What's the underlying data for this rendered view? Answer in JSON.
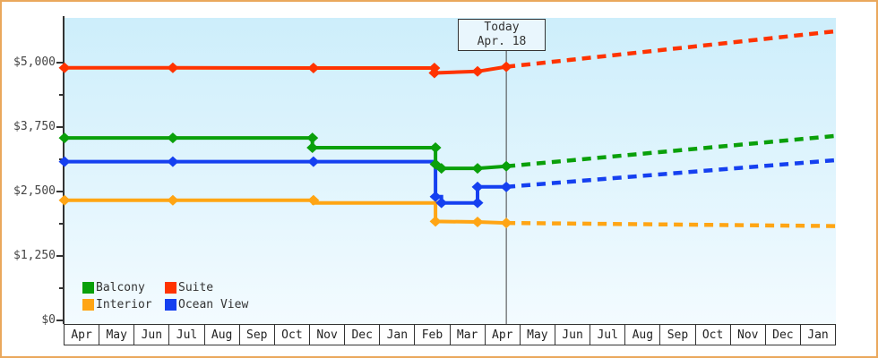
{
  "page": {
    "frame_color": "#eaa85c",
    "plot_bg_top": "#cdeefb",
    "plot_bg_bottom": "#f3fbff",
    "axis_color": "#333333"
  },
  "chart_data": {
    "type": "line",
    "description": "Cabin price history (solid) and forecast (dashed) by cabin category",
    "x_unit": "months",
    "x_range": [
      0,
      22
    ],
    "x_tick_labels": [
      "Apr",
      "May",
      "Jun",
      "Jul",
      "Aug",
      "Sep",
      "Oct",
      "Nov",
      "Dec",
      "Jan",
      "Feb",
      "Mar",
      "Apr",
      "May",
      "Jun",
      "Jul",
      "Aug",
      "Sep",
      "Oct",
      "Nov",
      "Dec",
      "Jan"
    ],
    "y_range": [
      0,
      5870
    ],
    "y_ticks": [
      0,
      1250,
      2500,
      3750,
      5000
    ],
    "y_tick_labels": [
      "$0",
      "$1,250",
      "$2,500",
      "$3,750",
      "$5,000"
    ],
    "y_minor_ticks": [
      625,
      1875,
      3125,
      4375
    ],
    "grid": false,
    "legend_position": "bottom-left",
    "today": {
      "x": 12.6,
      "label": "Today",
      "date": "Apr. 18"
    },
    "series": [
      {
        "name": "Interior",
        "color": "#ffa514",
        "history": [
          [
            0,
            2330
          ],
          [
            7.1,
            2330
          ],
          [
            7.1,
            2280
          ],
          [
            10.58,
            2280
          ],
          [
            10.58,
            1920
          ],
          [
            11.78,
            1910
          ],
          [
            12.6,
            1890
          ]
        ],
        "markers": [
          [
            0,
            2330
          ],
          [
            3.09,
            2330
          ],
          [
            7.1,
            2330
          ],
          [
            10.58,
            1920
          ],
          [
            11.78,
            1910
          ],
          [
            12.6,
            1890
          ]
        ],
        "forecast": [
          [
            12.6,
            1890
          ],
          [
            22,
            1830
          ]
        ]
      },
      {
        "name": "Ocean View",
        "color": "#1540f0",
        "history": [
          [
            0,
            3080
          ],
          [
            10.58,
            3080
          ],
          [
            10.58,
            2400
          ],
          [
            10.75,
            2400
          ],
          [
            10.75,
            2280
          ],
          [
            11.78,
            2280
          ],
          [
            11.78,
            2590
          ],
          [
            12.6,
            2590
          ]
        ],
        "markers": [
          [
            0,
            3080
          ],
          [
            3.09,
            3080
          ],
          [
            7.1,
            3080
          ],
          [
            10.58,
            2400
          ],
          [
            10.75,
            2280
          ],
          [
            11.78,
            2280
          ],
          [
            11.78,
            2590
          ],
          [
            12.6,
            2590
          ]
        ],
        "forecast": [
          [
            12.6,
            2590
          ],
          [
            22,
            3110
          ]
        ]
      },
      {
        "name": "Balcony",
        "color": "#0aa00a",
        "history": [
          [
            0,
            3540
          ],
          [
            7.07,
            3540
          ],
          [
            7.07,
            3350
          ],
          [
            10.58,
            3350
          ],
          [
            10.58,
            3030
          ],
          [
            10.75,
            2950
          ],
          [
            11.78,
            2950
          ],
          [
            12.6,
            2990
          ]
        ],
        "markers": [
          [
            0,
            3540
          ],
          [
            3.09,
            3540
          ],
          [
            7.07,
            3540
          ],
          [
            7.07,
            3350
          ],
          [
            10.58,
            3350
          ],
          [
            10.58,
            3030
          ],
          [
            10.75,
            2950
          ],
          [
            11.78,
            2950
          ],
          [
            12.6,
            2990
          ]
        ],
        "forecast": [
          [
            12.6,
            2990
          ],
          [
            22,
            3580
          ]
        ]
      },
      {
        "name": "Suite",
        "color": "#ff3300",
        "history": [
          [
            0,
            4900
          ],
          [
            3.09,
            4900
          ],
          [
            7.1,
            4895
          ],
          [
            10.55,
            4895
          ],
          [
            10.55,
            4800
          ],
          [
            11.78,
            4830
          ],
          [
            12.6,
            4920
          ]
        ],
        "markers": [
          [
            0,
            4900
          ],
          [
            3.09,
            4900
          ],
          [
            7.1,
            4895
          ],
          [
            10.55,
            4895
          ],
          [
            10.55,
            4800
          ],
          [
            11.78,
            4830
          ],
          [
            12.6,
            4920
          ]
        ],
        "forecast": [
          [
            12.6,
            4920
          ],
          [
            22,
            5610
          ]
        ]
      }
    ]
  },
  "legend": [
    {
      "label": "Balcony",
      "color": "#0aa00a"
    },
    {
      "label": "Suite",
      "color": "#ff3300"
    },
    {
      "label": "Interior",
      "color": "#ffa514"
    },
    {
      "label": "Ocean View",
      "color": "#1540f0"
    }
  ]
}
